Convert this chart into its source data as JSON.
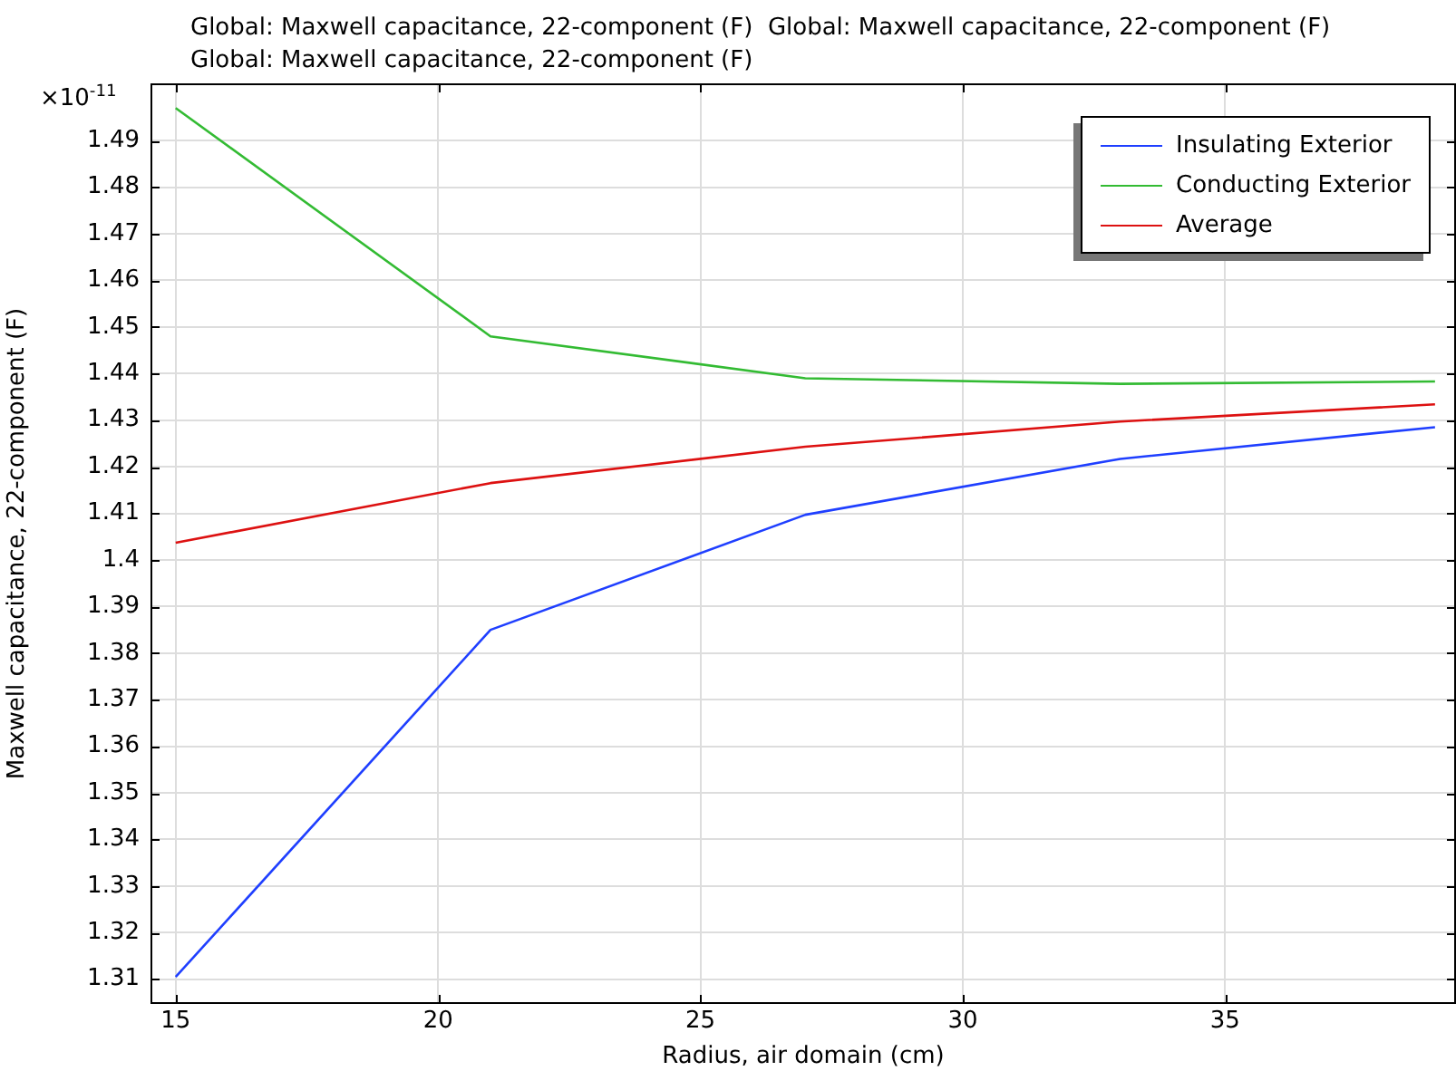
{
  "chart_data": {
    "type": "line",
    "title": "Global: Maxwell capacitance, 22-component (F)  Global: Maxwell capacitance, 22-component (F)",
    "subtitle": "Global: Maxwell capacitance, 22-component (F)",
    "xlabel": "Radius, air domain (cm)",
    "ylabel": "Maxwell capacitance, 22-component (F)",
    "annotations": [
      "×10$^{-11}$"
    ],
    "x": [
      15,
      21,
      27,
      33,
      39
    ],
    "series": [
      {
        "name": "Insulating Exterior",
        "color": "#1f3fff",
        "values": [
          1.3105,
          1.385,
          1.4097,
          1.4217,
          1.4285
        ]
      },
      {
        "name": "Conducting Exterior",
        "color": "#33bb33",
        "values": [
          1.497,
          1.448,
          1.439,
          1.4378,
          1.4383
        ]
      },
      {
        "name": "Average",
        "color": "#dd1111",
        "values": [
          1.4037,
          1.4165,
          1.4243,
          1.4297,
          1.4334
        ]
      }
    ],
    "xlim": [
      14.52,
      39.4
    ],
    "xticks": [
      15,
      20,
      25,
      30,
      35
    ],
    "ylim": [
      1.3047,
      1.5023
    ],
    "yticks": [
      1.31,
      1.32,
      1.33,
      1.34,
      1.35,
      1.36,
      1.37,
      1.38,
      1.39,
      1.4,
      1.41,
      1.42,
      1.43,
      1.44,
      1.45,
      1.46,
      1.47,
      1.48,
      1.49
    ],
    "grid": true,
    "legend": "top right",
    "marker": "none",
    "line_style": "solid"
  }
}
